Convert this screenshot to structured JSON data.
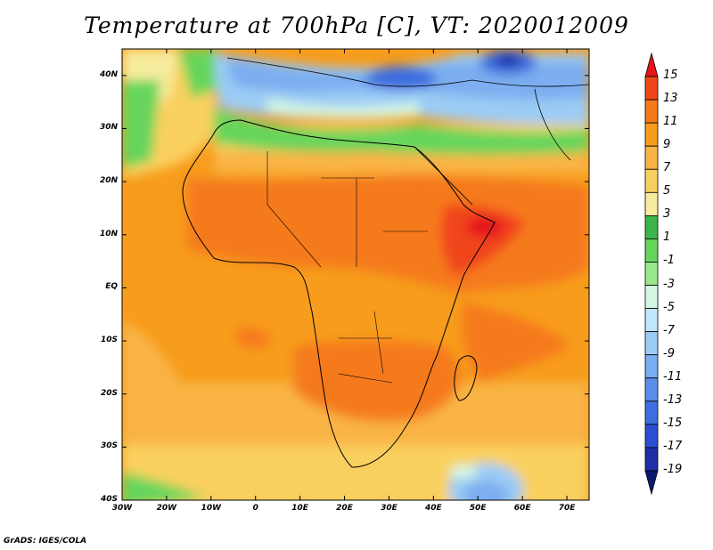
{
  "title": "Temperature at 700hPa [C], VT: 2020012009",
  "footer": "GrADS: IGES/COLA",
  "map": {
    "lat_labels": [
      "40N",
      "30N",
      "20N",
      "10N",
      "EQ",
      "10S",
      "20S",
      "30S",
      "40S"
    ],
    "lon_labels": [
      "30W",
      "20W",
      "10W",
      "0",
      "10E",
      "20E",
      "30E",
      "40E",
      "50E",
      "60E",
      "70E"
    ],
    "lat_range": [
      -40,
      45
    ],
    "lon_range": [
      -30,
      75
    ],
    "fill": "shaded contours of 700hPa temperature over Africa"
  },
  "colorbar": {
    "labels": [
      "15",
      "13",
      "11",
      "9",
      "7",
      "5",
      "3",
      "1",
      "-1",
      "-3",
      "-5",
      "-7",
      "-9",
      "-11",
      "-13",
      "-15",
      "-17",
      "-19"
    ],
    "colors": [
      "#e5151a",
      "#f1451b",
      "#f57a1a",
      "#f79c1c",
      "#f9b445",
      "#f9d05f",
      "#f7ec9e",
      "#3cb44b",
      "#66d55c",
      "#9ae88b",
      "#d5f7e2",
      "#c1e6fb",
      "#9bccf5",
      "#7baef0",
      "#5a8ee8",
      "#3d6ddf",
      "#2c4ed2",
      "#1e2fa5",
      "#0b1a6e"
    ]
  }
}
